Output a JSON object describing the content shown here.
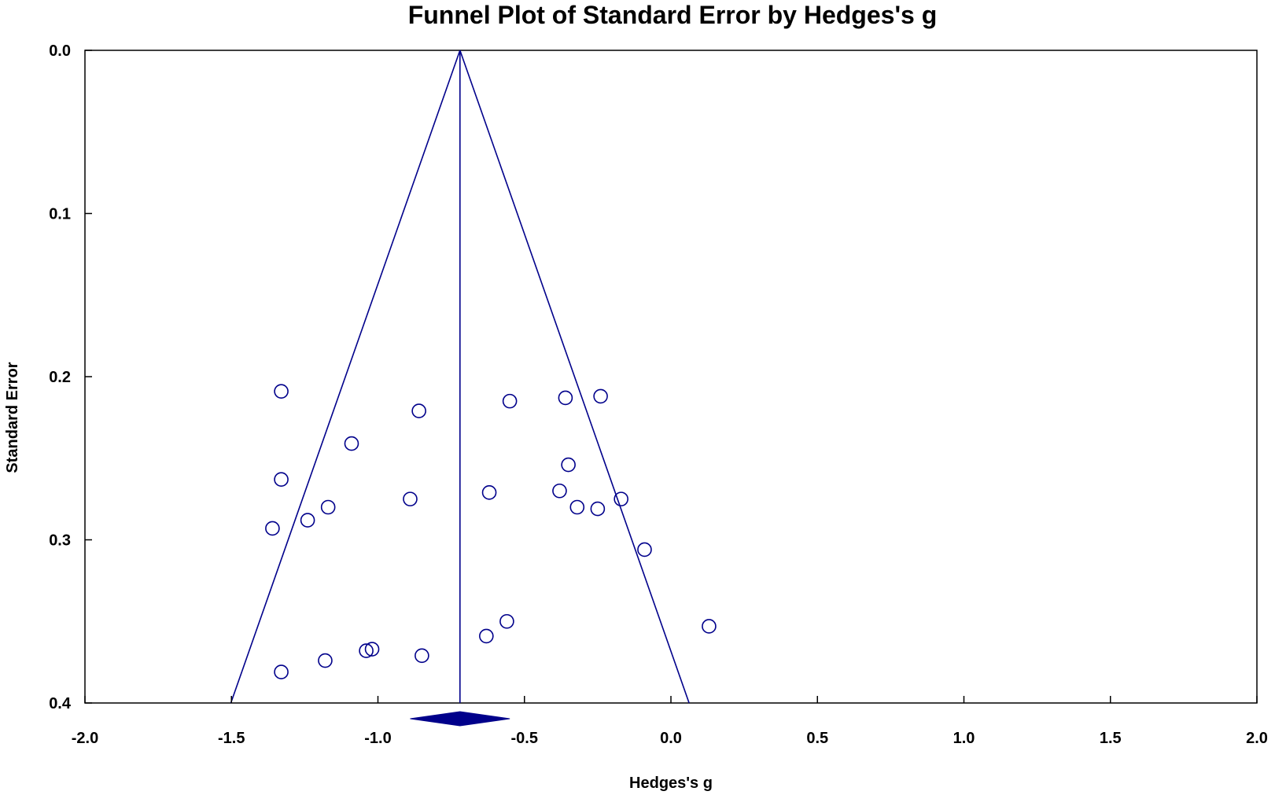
{
  "chart_data": {
    "type": "scatter",
    "title": "Funnel Plot of Standard Error by Hedges's g",
    "xlabel": "Hedges's g",
    "ylabel": "Standard Error",
    "xlim": [
      -2.0,
      2.0
    ],
    "ylim": [
      0.0,
      0.4
    ],
    "y_inverted": true,
    "grid": false,
    "x_ticks": [
      "-2.0",
      "-1.5",
      "-1.0",
      "-0.5",
      "0.0",
      "0.5",
      "1.0",
      "1.5",
      "2.0"
    ],
    "y_ticks": [
      "0.0",
      "0.1",
      "0.2",
      "0.3",
      "0.4"
    ],
    "x_tick_values": [
      -2.0,
      -1.5,
      -1.0,
      -0.5,
      0.0,
      0.5,
      1.0,
      1.5,
      2.0
    ],
    "y_tick_values": [
      0.0,
      0.1,
      0.2,
      0.3,
      0.4
    ],
    "pooled_estimate": -0.72,
    "funnel_bottom": [
      -1.502,
      0.062
    ],
    "diamond": {
      "center": -0.72,
      "lower": -0.89,
      "upper": -0.55
    },
    "points": [
      {
        "x": -1.33,
        "y": 0.209
      },
      {
        "x": -0.86,
        "y": 0.221
      },
      {
        "x": -0.55,
        "y": 0.215
      },
      {
        "x": -0.36,
        "y": 0.213
      },
      {
        "x": -0.24,
        "y": 0.212
      },
      {
        "x": -1.09,
        "y": 0.241
      },
      {
        "x": -0.35,
        "y": 0.254
      },
      {
        "x": -1.33,
        "y": 0.263
      },
      {
        "x": -0.62,
        "y": 0.271
      },
      {
        "x": -0.38,
        "y": 0.27
      },
      {
        "x": -0.89,
        "y": 0.275
      },
      {
        "x": -0.17,
        "y": 0.275
      },
      {
        "x": -1.17,
        "y": 0.28
      },
      {
        "x": -0.32,
        "y": 0.28
      },
      {
        "x": -0.25,
        "y": 0.281
      },
      {
        "x": -1.24,
        "y": 0.288
      },
      {
        "x": -1.36,
        "y": 0.293
      },
      {
        "x": -0.09,
        "y": 0.306
      },
      {
        "x": -0.56,
        "y": 0.35
      },
      {
        "x": 0.13,
        "y": 0.353
      },
      {
        "x": -0.63,
        "y": 0.359
      },
      {
        "x": -1.04,
        "y": 0.368
      },
      {
        "x": -1.02,
        "y": 0.367
      },
      {
        "x": -0.85,
        "y": 0.371
      },
      {
        "x": -1.18,
        "y": 0.374
      },
      {
        "x": -1.33,
        "y": 0.381
      }
    ],
    "colors": {
      "marks": "#00008b",
      "axes": "#000000",
      "background": "#ffffff"
    }
  }
}
